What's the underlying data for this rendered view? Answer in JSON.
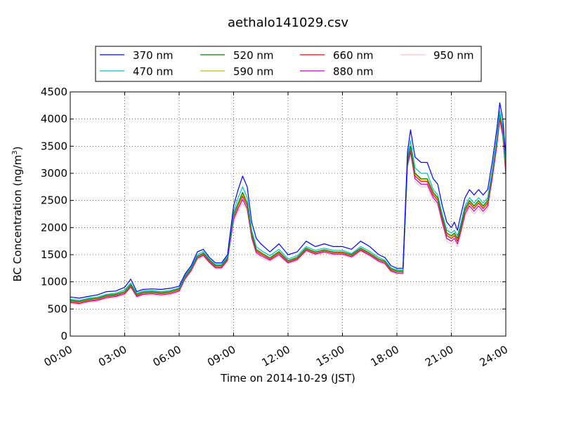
{
  "chart_data": {
    "type": "line",
    "title": "aethalo141029.csv",
    "xlabel": "Time on 2014-10-29 (JST)",
    "ylabel": "BC Concentration (ng/m",
    "ylabel_superscript": "3",
    "ylabel_suffix": ")",
    "xlim": [
      "00:00",
      "24:00"
    ],
    "ylim": [
      0,
      4500
    ],
    "xticks": [
      "00:00",
      "03:00",
      "06:00",
      "09:00",
      "12:00",
      "15:00",
      "18:00",
      "21:00",
      "24:00"
    ],
    "yticks": [
      0,
      500,
      1000,
      1500,
      2000,
      2500,
      3000,
      3500,
      4000,
      4500
    ],
    "grid": true,
    "legend_position": "top, above plot",
    "x": [
      "00:00",
      "00:30",
      "01:00",
      "01:30",
      "02:00",
      "02:30",
      "03:00",
      "03:20",
      "03:40",
      "04:00",
      "04:30",
      "05:00",
      "05:30",
      "06:00",
      "06:20",
      "06:40",
      "07:00",
      "07:20",
      "07:40",
      "08:00",
      "08:20",
      "08:40",
      "09:00",
      "09:15",
      "09:30",
      "09:45",
      "10:00",
      "10:15",
      "10:30",
      "11:00",
      "11:30",
      "12:00",
      "12:30",
      "13:00",
      "13:30",
      "14:00",
      "14:30",
      "15:00",
      "15:30",
      "16:00",
      "16:30",
      "17:00",
      "17:20",
      "17:40",
      "18:00",
      "18:20",
      "18:35",
      "18:45",
      "19:00",
      "19:20",
      "19:40",
      "20:00",
      "20:15",
      "20:30",
      "20:45",
      "21:00",
      "21:10",
      "21:20",
      "21:30",
      "21:45",
      "22:00",
      "22:15",
      "22:30",
      "22:45",
      "23:00",
      "23:15",
      "23:30",
      "23:40",
      "23:50",
      "24:00"
    ],
    "series": [
      {
        "name": "370 nm",
        "color": "#0000ff",
        "values": [
          720,
          700,
          730,
          760,
          820,
          830,
          900,
          1050,
          820,
          860,
          870,
          860,
          880,
          920,
          1150,
          1300,
          1550,
          1600,
          1450,
          1350,
          1350,
          1500,
          2400,
          2700,
          2950,
          2750,
          2100,
          1800,
          1700,
          1550,
          1700,
          1500,
          1550,
          1750,
          1650,
          1700,
          1650,
          1650,
          1600,
          1750,
          1650,
          1500,
          1450,
          1300,
          1250,
          1250,
          3400,
          3800,
          3300,
          3200,
          3200,
          2900,
          2800,
          2400,
          2100,
          2000,
          2100,
          1950,
          2200,
          2550,
          2700,
          2600,
          2700,
          2600,
          2700,
          3200,
          3800,
          4300,
          4000,
          3300
        ]
      },
      {
        "name": "470 nm",
        "color": "#00bfbf",
        "values": [
          680,
          660,
          700,
          720,
          770,
          790,
          850,
          980,
          790,
          830,
          840,
          820,
          840,
          890,
          1120,
          1270,
          1500,
          1560,
          1420,
          1320,
          1320,
          1470,
          2300,
          2550,
          2750,
          2550,
          1950,
          1650,
          1580,
          1480,
          1600,
          1420,
          1480,
          1650,
          1580,
          1620,
          1580,
          1580,
          1520,
          1650,
          1560,
          1450,
          1400,
          1260,
          1220,
          1220,
          3300,
          3600,
          3100,
          3000,
          3000,
          2700,
          2600,
          2250,
          1950,
          1900,
          1950,
          1850,
          2050,
          2400,
          2550,
          2450,
          2550,
          2450,
          2550,
          3050,
          3650,
          4150,
          3850,
          3150
        ]
      },
      {
        "name": "520 nm",
        "color": "#008000",
        "values": [
          660,
          640,
          680,
          700,
          750,
          770,
          820,
          950,
          770,
          810,
          820,
          800,
          820,
          870,
          1100,
          1250,
          1470,
          1530,
          1400,
          1300,
          1300,
          1440,
          2250,
          2450,
          2650,
          2450,
          1900,
          1600,
          1540,
          1440,
          1560,
          1390,
          1450,
          1620,
          1550,
          1590,
          1550,
          1550,
          1500,
          1620,
          1530,
          1420,
          1380,
          1240,
          1200,
          1200,
          3250,
          3500,
          3000,
          2900,
          2900,
          2650,
          2550,
          2200,
          1900,
          1850,
          1900,
          1800,
          2000,
          2350,
          2500,
          2400,
          2500,
          2400,
          2500,
          3000,
          3600,
          4100,
          3800,
          3100
        ]
      },
      {
        "name": "590 nm",
        "color": "#bfbf00",
        "values": [
          650,
          630,
          670,
          690,
          740,
          760,
          810,
          940,
          760,
          800,
          810,
          790,
          810,
          860,
          1090,
          1240,
          1460,
          1520,
          1390,
          1290,
          1290,
          1430,
          2230,
          2420,
          2620,
          2420,
          1880,
          1590,
          1530,
          1430,
          1550,
          1380,
          1440,
          1610,
          1540,
          1580,
          1540,
          1540,
          1490,
          1610,
          1520,
          1410,
          1370,
          1230,
          1190,
          1190,
          3230,
          3480,
          2980,
          2880,
          2880,
          2630,
          2530,
          2180,
          1880,
          1830,
          1880,
          1780,
          1980,
          2330,
          2480,
          2380,
          2480,
          2380,
          2480,
          2980,
          3580,
          4080,
          3780,
          3080
        ]
      },
      {
        "name": "660 nm",
        "color": "#ff0000",
        "values": [
          640,
          620,
          660,
          680,
          730,
          750,
          800,
          930,
          750,
          790,
          800,
          780,
          800,
          850,
          1080,
          1230,
          1450,
          1510,
          1380,
          1280,
          1280,
          1420,
          2200,
          2400,
          2580,
          2400,
          1860,
          1570,
          1510,
          1420,
          1530,
          1370,
          1430,
          1600,
          1530,
          1570,
          1530,
          1530,
          1480,
          1600,
          1510,
          1400,
          1360,
          1220,
          1180,
          1180,
          3200,
          3450,
          2950,
          2850,
          2850,
          2600,
          2500,
          2150,
          1850,
          1800,
          1850,
          1750,
          1950,
          2300,
          2450,
          2350,
          2450,
          2350,
          2450,
          2950,
          3550,
          4050,
          3750,
          3050
        ]
      },
      {
        "name": "880 nm",
        "color": "#bf00bf",
        "values": [
          620,
          600,
          640,
          660,
          710,
          730,
          780,
          910,
          730,
          770,
          780,
          760,
          780,
          830,
          1060,
          1210,
          1430,
          1490,
          1360,
          1260,
          1260,
          1400,
          2150,
          2350,
          2520,
          2350,
          1820,
          1540,
          1480,
          1400,
          1500,
          1350,
          1410,
          1580,
          1510,
          1550,
          1510,
          1510,
          1460,
          1580,
          1490,
          1380,
          1340,
          1200,
          1160,
          1160,
          3150,
          3400,
          2900,
          2800,
          2800,
          2550,
          2450,
          2100,
          1800,
          1750,
          1800,
          1700,
          1900,
          2250,
          2400,
          2300,
          2400,
          2300,
          2400,
          2900,
          3500,
          4000,
          3700,
          3000
        ]
      },
      {
        "name": "950 nm",
        "color": "#ffc0cb",
        "values": [
          600,
          580,
          620,
          640,
          690,
          710,
          760,
          890,
          710,
          750,
          760,
          740,
          760,
          810,
          1040,
          1190,
          1410,
          1470,
          1340,
          1240,
          1240,
          1380,
          2100,
          2300,
          2450,
          2300,
          1780,
          1510,
          1450,
          1380,
          1470,
          1330,
          1390,
          1560,
          1490,
          1530,
          1490,
          1490,
          1440,
          1560,
          1470,
          1360,
          1320,
          1180,
          1140,
          1140,
          3100,
          3350,
          2850,
          2750,
          2750,
          2500,
          2400,
          2050,
          1750,
          1700,
          1750,
          1650,
          1850,
          2200,
          2350,
          2250,
          2350,
          2250,
          2350,
          2850,
          3450,
          3950,
          3650,
          2950
        ]
      }
    ]
  }
}
